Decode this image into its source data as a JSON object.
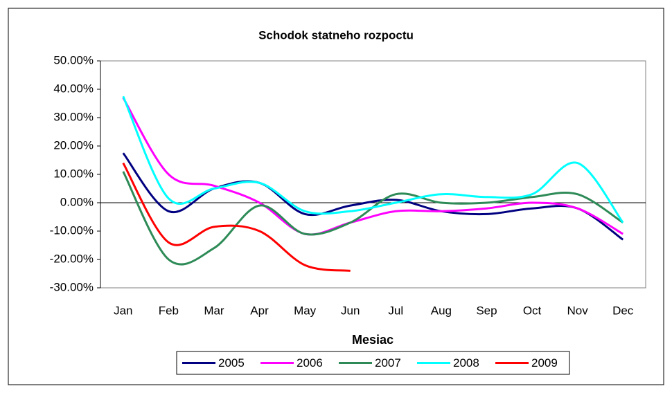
{
  "chart_data": {
    "type": "line",
    "title": "Schodok statneho rozpoctu",
    "x_label": "Mesiac",
    "categories": [
      "Jan",
      "Feb",
      "Mar",
      "Apr",
      "May",
      "Jun",
      "Jul",
      "Aug",
      "Sep",
      "Oct",
      "Nov",
      "Dec"
    ],
    "ylim": [
      -30,
      50
    ],
    "yticks": [
      {
        "value": -30,
        "label": "-30.00%"
      },
      {
        "value": -20,
        "label": "-20.00%"
      },
      {
        "value": -10,
        "label": "-10.00%"
      },
      {
        "value": 0,
        "label": "0.00%"
      },
      {
        "value": 10,
        "label": "10.00%"
      },
      {
        "value": 20,
        "label": "20.00%"
      },
      {
        "value": 30,
        "label": "30.00%"
      },
      {
        "value": 40,
        "label": "40.00%"
      },
      {
        "value": 50,
        "label": "50.00%"
      }
    ],
    "smooth": true,
    "legend": "bottom",
    "series": [
      {
        "name": "2005",
        "color": "#000080",
        "values": [
          17.5,
          -3,
          5,
          7,
          -4,
          -1,
          1,
          -3,
          -4,
          -2,
          -2,
          -13
        ]
      },
      {
        "name": "2006",
        "color": "#ff00ff",
        "values": [
          37,
          10,
          6,
          0,
          -11,
          -7,
          -3,
          -3,
          -2,
          0,
          -2,
          -11
        ]
      },
      {
        "name": "2007",
        "color": "#2e8b57",
        "values": [
          11,
          -20,
          -16,
          -1,
          -11,
          -7,
          3,
          0,
          0,
          2,
          3,
          -7
        ]
      },
      {
        "name": "2008",
        "color": "#00ffff",
        "values": [
          37.5,
          1.5,
          5,
          7,
          -3,
          -3,
          0,
          3,
          2,
          3,
          14,
          -7
        ]
      },
      {
        "name": "2009",
        "color": "#ff0000",
        "values": [
          14,
          -14,
          -8.5,
          -10,
          -22,
          -24,
          null,
          null,
          null,
          null,
          null,
          null
        ]
      }
    ]
  }
}
